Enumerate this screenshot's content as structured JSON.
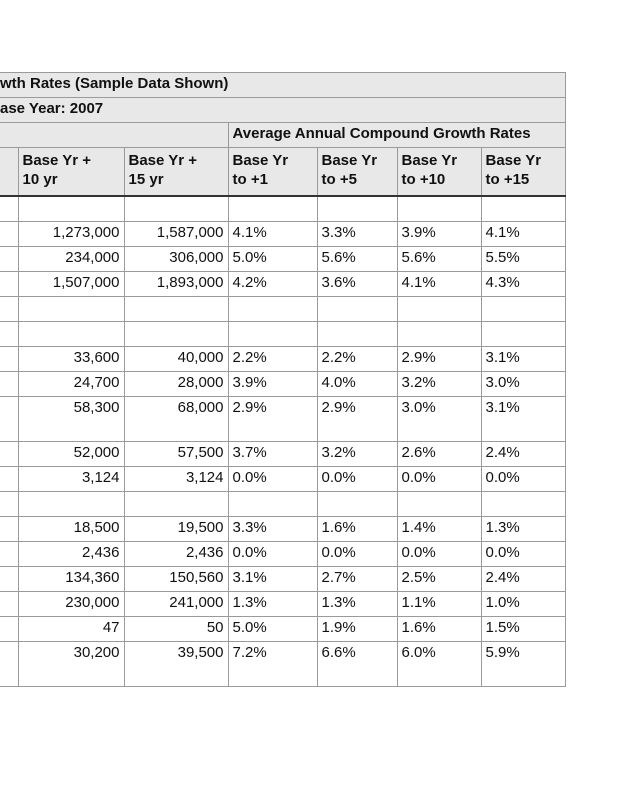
{
  "title": "wth Rates (Sample Data Shown)",
  "base_year": "ase Year: 2007",
  "group_header": "Average Annual Compound Growth Rates",
  "columns": [
    "",
    "Base Yr +\n10 yr",
    "Base Yr +\n15 yr",
    "Base Yr\nto +1",
    "Base Yr\nto +5",
    "Base Yr\nto +10",
    "Base Yr\nto +15"
  ],
  "rows": [
    [
      "",
      "",
      "",
      "",
      "",
      "",
      ""
    ],
    [
      "",
      "1,273,000",
      "1,587,000",
      "4.1%",
      "3.3%",
      "3.9%",
      "4.1%"
    ],
    [
      "",
      "234,000",
      "306,000",
      "5.0%",
      "5.6%",
      "5.6%",
      "5.5%"
    ],
    [
      "",
      "1,507,000",
      "1,893,000",
      "4.2%",
      "3.6%",
      "4.1%",
      "4.3%"
    ],
    [
      "",
      "",
      "",
      "",
      "",
      "",
      ""
    ],
    [
      "",
      "",
      "",
      "",
      "",
      "",
      ""
    ],
    [
      "",
      "33,600",
      "40,000",
      "2.2%",
      "2.2%",
      "2.9%",
      "3.1%"
    ],
    [
      "",
      "24,700",
      "28,000",
      "3.9%",
      "4.0%",
      "3.2%",
      "3.0%"
    ],
    [
      "",
      "58,300",
      "68,000",
      "2.9%",
      "2.9%",
      "3.0%",
      "3.1%"
    ],
    [
      "",
      "52,000",
      "57,500",
      "3.7%",
      "3.2%",
      "2.6%",
      "2.4%"
    ],
    [
      "",
      "3,124",
      "3,124",
      "0.0%",
      "0.0%",
      "0.0%",
      "0.0%"
    ],
    [
      "",
      "",
      "",
      "",
      "",
      "",
      ""
    ],
    [
      "",
      "18,500",
      "19,500",
      "3.3%",
      "1.6%",
      "1.4%",
      "1.3%"
    ],
    [
      "",
      "2,436",
      "2,436",
      "0.0%",
      "0.0%",
      "0.0%",
      "0.0%"
    ],
    [
      "",
      "134,360",
      "150,560",
      "3.1%",
      "2.7%",
      "2.5%",
      "2.4%"
    ],
    [
      "",
      "230,000",
      "241,000",
      "1.3%",
      "1.3%",
      "1.1%",
      "1.0%"
    ],
    [
      "",
      "47",
      "50",
      "5.0%",
      "1.9%",
      "1.6%",
      "1.5%"
    ],
    [
      "",
      "30,200",
      "39,500",
      "7.2%",
      "6.6%",
      "6.0%",
      "5.9%"
    ]
  ]
}
